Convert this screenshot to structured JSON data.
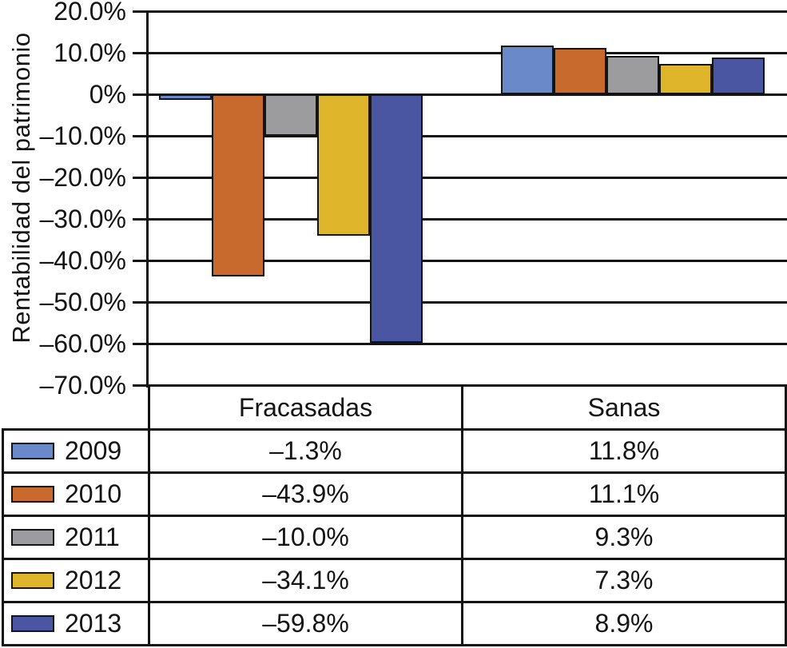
{
  "y_axis": {
    "title": "Rentabilidad del patrimonio",
    "ticks": [
      {
        "label": "20.0%",
        "value": 20
      },
      {
        "label": "10.0%",
        "value": 10
      },
      {
        "label": "0%",
        "value": 0
      },
      {
        "label": "–10.0%",
        "value": -10
      },
      {
        "label": "–20.0%",
        "value": -20
      },
      {
        "label": "–30.0%",
        "value": -30
      },
      {
        "label": "–40.0%",
        "value": -40
      },
      {
        "label": "–50.0%",
        "value": -50
      },
      {
        "label": "–60.0%",
        "value": -60
      },
      {
        "label": "–70.0%",
        "value": -70
      }
    ]
  },
  "chart_data": {
    "type": "bar",
    "title": "",
    "xlabel": "",
    "ylabel": "Rentabilidad del patrimonio",
    "ylim": [
      -70,
      20
    ],
    "grid": true,
    "legend_position": "table-left-column",
    "categories": [
      "Fracasadas",
      "Sanas"
    ],
    "series": [
      {
        "name": "2009",
        "color": "#6989C8",
        "values": [
          -1.3,
          11.8
        ]
      },
      {
        "name": "2010",
        "color": "#C8692D",
        "values": [
          -43.9,
          11.1
        ]
      },
      {
        "name": "2011",
        "color": "#9C9C9E",
        "values": [
          -10.0,
          9.3
        ]
      },
      {
        "name": "2012",
        "color": "#DFB52C",
        "values": [
          -34.1,
          7.3
        ]
      },
      {
        "name": "2013",
        "color": "#4B56A3",
        "values": [
          -59.8,
          8.9
        ]
      }
    ]
  },
  "table": {
    "headers": {
      "fracasadas": "Fracasadas",
      "sanas": "Sanas"
    },
    "rows": [
      {
        "year": "2009",
        "fracasadas": "–1.3%",
        "sanas": "11.8%"
      },
      {
        "year": "2010",
        "fracasadas": "–43.9%",
        "sanas": "11.1%"
      },
      {
        "year": "2011",
        "fracasadas": "–10.0%",
        "sanas": "9.3%"
      },
      {
        "year": "2012",
        "fracasadas": "–34.1%",
        "sanas": "7.3%"
      },
      {
        "year": "2013",
        "fracasadas": "–59.8%",
        "sanas": "8.9%"
      }
    ]
  },
  "colors": {
    "line": "#141414",
    "background": "#ffffff"
  }
}
